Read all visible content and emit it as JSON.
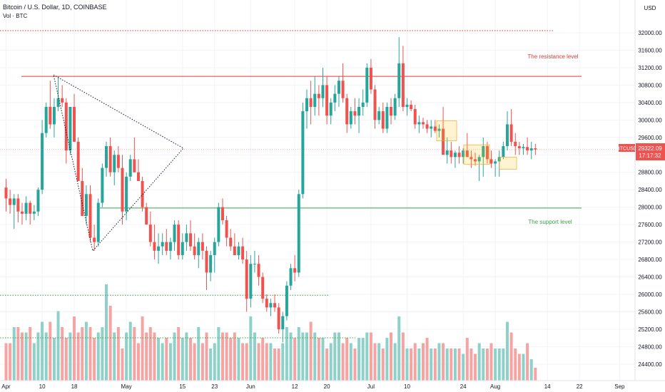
{
  "header": {
    "title": "Bitcoin / U.S. Dollar, 1D, COINBASE",
    "volume_label": "Vol · BTC",
    "currency": "USD"
  },
  "price_tag": {
    "value": "29322.09",
    "countdown": "17:17:32",
    "symbol": "BTCUSD"
  },
  "annotations": {
    "resistance_label": "The resistance level",
    "support_label": "The support level"
  },
  "colors": {
    "up": "#26a69a",
    "down": "#ef5350",
    "vol_up": "#8ed1c9",
    "vol_down": "#f5a3a3",
    "resistance": "#e53935",
    "support": "#43a047"
  },
  "chart_data": {
    "type": "candlestick",
    "title": "Bitcoin / U.S. Dollar, 1D, COINBASE",
    "yticks": [
      24400,
      24800,
      25200,
      25600,
      26000,
      26400,
      26800,
      27200,
      27600,
      28000,
      28400,
      28800,
      29200,
      29600,
      30000,
      30400,
      30800,
      31200,
      31600,
      32000
    ],
    "ylim": [
      24100,
      32400
    ],
    "xticks": [
      {
        "label": "Apr",
        "day": 0
      },
      {
        "label": "10",
        "day": 9
      },
      {
        "label": "18",
        "day": 17
      },
      {
        "label": "May",
        "day": 30
      },
      {
        "label": "15",
        "day": 44
      },
      {
        "label": "23",
        "day": 52
      },
      {
        "label": "Jun",
        "day": 61
      },
      {
        "label": "12",
        "day": 72
      },
      {
        "label": "20",
        "day": 80
      },
      {
        "label": "Jul",
        "day": 91
      },
      {
        "label": "10",
        "day": 100
      },
      {
        "label": "24",
        "day": 114
      },
      {
        "label": "Aug",
        "day": 122
      },
      {
        "label": "14",
        "day": 135
      },
      {
        "label": "22",
        "day": 143
      },
      {
        "label": "Sep",
        "day": 153
      }
    ],
    "levels": {
      "resistance": 31000,
      "support": 27980,
      "upper_dotted": 32050,
      "lower_dotted": 25980
    },
    "ohlcv": [
      [
        28450,
        28650,
        27900,
        28200,
        0.35
      ],
      [
        28200,
        28400,
        27850,
        28050,
        0.35
      ],
      [
        28050,
        28300,
        27500,
        28200,
        0.5
      ],
      [
        28200,
        28300,
        27650,
        27900,
        0.5
      ],
      [
        27900,
        28100,
        27600,
        27850,
        0.45
      ],
      [
        27850,
        28250,
        27700,
        28100,
        0.45
      ],
      [
        28100,
        28150,
        27600,
        27850,
        0.5
      ],
      [
        27850,
        28050,
        27700,
        27900,
        0.35
      ],
      [
        27900,
        28450,
        27800,
        28400,
        0.45
      ],
      [
        28400,
        30000,
        28300,
        29700,
        0.55
      ],
      [
        29700,
        30400,
        29600,
        30300,
        0.45
      ],
      [
        30300,
        30900,
        29800,
        29900,
        0.55
      ],
      [
        29900,
        30500,
        29600,
        30300,
        0.4
      ],
      [
        30300,
        31000,
        30200,
        30500,
        0.65
      ],
      [
        30500,
        30800,
        30300,
        30400,
        0.5
      ],
      [
        30400,
        30500,
        29000,
        29300,
        0.4
      ],
      [
        29300,
        30300,
        29200,
        30300,
        0.45
      ],
      [
        30300,
        30600,
        29800,
        29500,
        0.6
      ],
      [
        29500,
        29600,
        28600,
        28600,
        0.45
      ],
      [
        28600,
        28900,
        27800,
        27800,
        0.5
      ],
      [
        27800,
        28500,
        27600,
        28300,
        0.55
      ],
      [
        28300,
        28500,
        27200,
        27300,
        0.5
      ],
      [
        27300,
        27600,
        27000,
        27200,
        0.4
      ],
      [
        27200,
        28200,
        27100,
        28100,
        0.45
      ],
      [
        28100,
        29000,
        28000,
        28900,
        0.5
      ],
      [
        28900,
        29500,
        28700,
        29400,
        0.9
      ],
      [
        29400,
        29600,
        28700,
        28800,
        0.7
      ],
      [
        28800,
        29300,
        28500,
        29200,
        0.45
      ],
      [
        29200,
        29400,
        28800,
        28900,
        0.5
      ],
      [
        28900,
        29200,
        27600,
        27900,
        0.3
      ],
      [
        27900,
        28800,
        27700,
        28700,
        0.45
      ],
      [
        28700,
        29200,
        28600,
        29100,
        0.55
      ],
      [
        29100,
        29600,
        28800,
        28800,
        0.5
      ],
      [
        28800,
        29100,
        28600,
        28600,
        0.35
      ],
      [
        28600,
        28700,
        27900,
        28000,
        0.6
      ],
      [
        28000,
        28100,
        27600,
        27600,
        0.45
      ],
      [
        27600,
        27900,
        27100,
        27200,
        0.5
      ],
      [
        27200,
        27600,
        26800,
        27000,
        0.45
      ],
      [
        27000,
        27400,
        26700,
        27100,
        0.4
      ],
      [
        27100,
        27400,
        26900,
        27200,
        0.35
      ],
      [
        27200,
        27500,
        26900,
        27000,
        0.4
      ],
      [
        27000,
        27300,
        26800,
        27200,
        0.35
      ],
      [
        27200,
        27700,
        27000,
        27600,
        0.45
      ],
      [
        27600,
        27700,
        26800,
        26900,
        0.5
      ],
      [
        26900,
        27400,
        26800,
        27200,
        0.4
      ],
      [
        27200,
        27600,
        27000,
        27400,
        0.45
      ],
      [
        27400,
        27700,
        27000,
        27100,
        0.4
      ],
      [
        27100,
        27400,
        26800,
        26900,
        0.35
      ],
      [
        26900,
        27300,
        26600,
        27200,
        0.5
      ],
      [
        27200,
        27400,
        26800,
        27000,
        0.35
      ],
      [
        27000,
        27100,
        26100,
        26500,
        0.45
      ],
      [
        26500,
        27000,
        26300,
        26900,
        0.3
      ],
      [
        26900,
        27300,
        26500,
        27200,
        0.35
      ],
      [
        27200,
        28100,
        27100,
        28000,
        0.5
      ],
      [
        28000,
        28200,
        27600,
        27700,
        0.45
      ],
      [
        27700,
        27800,
        27100,
        27300,
        0.45
      ],
      [
        27300,
        27500,
        27000,
        27100,
        0.4
      ],
      [
        27100,
        27400,
        26900,
        26900,
        0.45
      ],
      [
        26900,
        27200,
        26800,
        27100,
        0.4
      ],
      [
        27100,
        27300,
        26700,
        26800,
        0.35
      ],
      [
        26800,
        27000,
        25600,
        25900,
        0.35
      ],
      [
        25900,
        26900,
        25700,
        26700,
        0.6
      ],
      [
        26700,
        27000,
        26500,
        26700,
        0.45
      ],
      [
        26700,
        26900,
        26200,
        26400,
        0.35
      ],
      [
        26400,
        26500,
        25800,
        25900,
        0.4
      ],
      [
        25900,
        26000,
        25600,
        25700,
        0.35
      ],
      [
        25700,
        25900,
        25500,
        25800,
        0.35
      ],
      [
        25800,
        26000,
        25600,
        25700,
        0.3
      ],
      [
        25700,
        25800,
        25100,
        25200,
        0.3
      ],
      [
        25200,
        25600,
        24900,
        25500,
        0.35
      ],
      [
        25500,
        26300,
        25400,
        26200,
        0.5
      ],
      [
        26200,
        26700,
        26100,
        26600,
        0.45
      ],
      [
        26600,
        26900,
        26300,
        26500,
        0.4
      ],
      [
        26500,
        28400,
        26400,
        28300,
        0.5
      ],
      [
        28300,
        30400,
        28200,
        30200,
        0.45
      ],
      [
        30200,
        30700,
        29800,
        30500,
        0.45
      ],
      [
        30500,
        30900,
        29900,
        30300,
        0.55
      ],
      [
        30300,
        31000,
        30100,
        30600,
        0.45
      ],
      [
        30600,
        30800,
        30100,
        30500,
        0.4
      ],
      [
        30500,
        31200,
        30300,
        30800,
        0.4
      ],
      [
        30800,
        31000,
        29900,
        30100,
        0.3
      ],
      [
        30100,
        30500,
        29900,
        30400,
        0.35
      ],
      [
        30400,
        30800,
        30200,
        30600,
        0.45
      ],
      [
        30600,
        31000,
        30300,
        30900,
        0.45
      ],
      [
        30900,
        31300,
        30400,
        30500,
        0.35
      ],
      [
        30500,
        30600,
        29700,
        29900,
        0.4
      ],
      [
        29900,
        30300,
        29800,
        30200,
        0.35
      ],
      [
        30200,
        30500,
        29900,
        30100,
        0.3
      ],
      [
        30100,
        30500,
        29700,
        30300,
        0.4
      ],
      [
        30300,
        30700,
        30100,
        30400,
        0.4
      ],
      [
        30400,
        31300,
        30300,
        31200,
        0.45
      ],
      [
        31200,
        31400,
        30600,
        30700,
        0.45
      ],
      [
        30700,
        30800,
        29800,
        30000,
        0.35
      ],
      [
        30000,
        30300,
        29900,
        30200,
        0.35
      ],
      [
        30200,
        30400,
        29700,
        29800,
        0.3
      ],
      [
        29800,
        30400,
        29700,
        30300,
        0.4
      ],
      [
        30300,
        30500,
        29900,
        30100,
        0.45
      ],
      [
        30100,
        30600,
        30000,
        30500,
        0.35
      ],
      [
        30500,
        31900,
        30300,
        31300,
        0.6
      ],
      [
        31300,
        31700,
        30200,
        30300,
        0.45
      ],
      [
        30300,
        30500,
        30100,
        30350,
        0.3
      ],
      [
        30350,
        30450,
        30200,
        30250,
        0.3
      ],
      [
        30250,
        30350,
        29800,
        29900,
        0.35
      ],
      [
        29900,
        30100,
        29700,
        29950,
        0.3
      ],
      [
        29950,
        30050,
        29800,
        29900,
        0.35
      ],
      [
        29900,
        30000,
        29700,
        29800,
        0.4
      ],
      [
        29800,
        30000,
        29600,
        29850,
        0.3
      ],
      [
        29850,
        30000,
        29700,
        29750,
        0.3
      ],
      [
        29750,
        29900,
        29600,
        29800,
        0.35
      ],
      [
        29800,
        30300,
        29700,
        29200,
        0.35
      ],
      [
        29200,
        29600,
        29000,
        29300,
        0.3
      ],
      [
        29300,
        29500,
        29000,
        29150,
        0.3
      ],
      [
        29150,
        29300,
        28900,
        29250,
        0.3
      ],
      [
        29250,
        29400,
        29000,
        29150,
        0.3
      ],
      [
        29150,
        29350,
        29000,
        29300,
        0.25
      ],
      [
        29300,
        29700,
        29200,
        29150,
        0.4
      ],
      [
        29150,
        29300,
        28900,
        29100,
        0.3
      ],
      [
        29100,
        29250,
        28950,
        29050,
        0.25
      ],
      [
        29050,
        29200,
        28600,
        29150,
        0.35
      ],
      [
        29150,
        29600,
        28700,
        29400,
        0.3
      ],
      [
        29400,
        29500,
        29000,
        29100,
        0.3
      ],
      [
        29100,
        29300,
        28900,
        29000,
        0.35
      ],
      [
        29000,
        29100,
        28700,
        29050,
        0.3
      ],
      [
        29050,
        29300,
        28700,
        29150,
        0.3
      ],
      [
        29150,
        29500,
        29100,
        29400,
        0.3
      ],
      [
        29400,
        30200,
        29300,
        29900,
        0.55
      ],
      [
        29900,
        30250,
        29400,
        29500,
        0.45
      ],
      [
        29500,
        29700,
        29200,
        29400,
        0.3
      ],
      [
        29400,
        29500,
        29200,
        29350,
        0.25
      ],
      [
        29350,
        29450,
        29200,
        29380,
        0.25
      ],
      [
        29380,
        29600,
        29200,
        29300,
        0.35
      ],
      [
        29300,
        29500,
        29100,
        29350,
        0.2
      ],
      [
        29350,
        29450,
        29200,
        29322,
        0.12
      ]
    ]
  }
}
